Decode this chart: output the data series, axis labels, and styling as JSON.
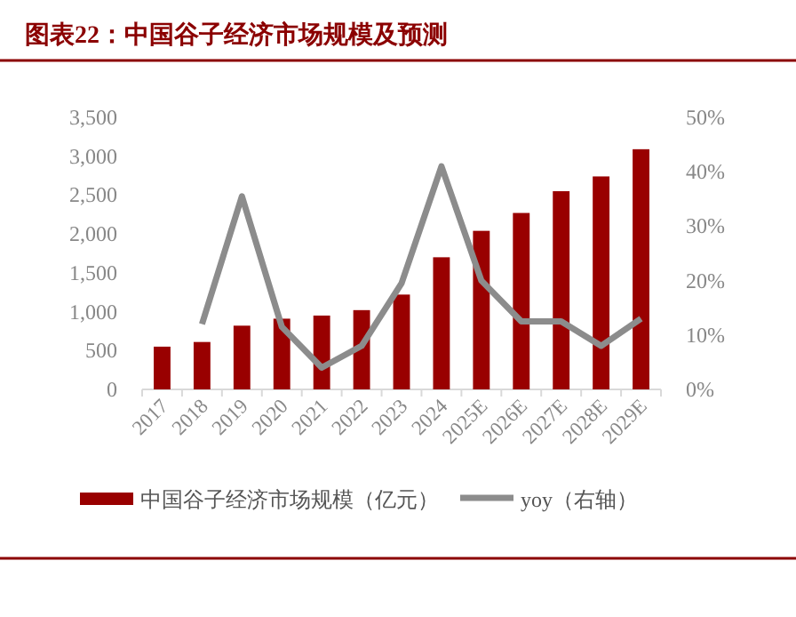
{
  "chart_data": {
    "type": "bar",
    "title": "图表22：中国谷子经济市场规模及预测",
    "categories": [
      "2017",
      "2018",
      "2019",
      "2020",
      "2021",
      "2022",
      "2023",
      "2024",
      "2025E",
      "2026E",
      "2027E",
      "2028E",
      "2029E"
    ],
    "series": [
      {
        "name": "中国谷子经济市场规模（亿元）",
        "color": "#990000",
        "values": [
          550,
          610,
          820,
          910,
          950,
          1020,
          1220,
          1700,
          2040,
          2270,
          2550,
          2740,
          3090
        ]
      },
      {
        "name": "yoy（右轴）",
        "type": "line",
        "axis": "y2",
        "color": "#8c8c8c",
        "values": [
          null,
          12,
          35.5,
          11.5,
          4,
          8,
          19.5,
          41,
          20,
          12.5,
          12.5,
          8,
          13
        ]
      }
    ],
    "ylim": [
      0,
      3500
    ],
    "yticks": [
      0,
      500,
      {
        "value": 1000,
        "label": "1,000"
      },
      {
        "value": 1500,
        "label": "1,500"
      },
      {
        "value": 2000,
        "label": "2,000"
      },
      {
        "value": 2500,
        "label": "2,500"
      },
      {
        "value": 3000,
        "label": "3,000"
      },
      {
        "value": 3500,
        "label": "3,500"
      }
    ],
    "y2lim": [
      0,
      50
    ],
    "y2ticks": [
      {
        "value": 0,
        "label": "0%"
      },
      {
        "value": 10,
        "label": "10%"
      },
      {
        "value": 20,
        "label": "20%"
      },
      {
        "value": 30,
        "label": "30%"
      },
      {
        "value": 40,
        "label": "40%"
      },
      {
        "value": 50,
        "label": "50%"
      }
    ],
    "legend": "bottom",
    "grid": false
  }
}
